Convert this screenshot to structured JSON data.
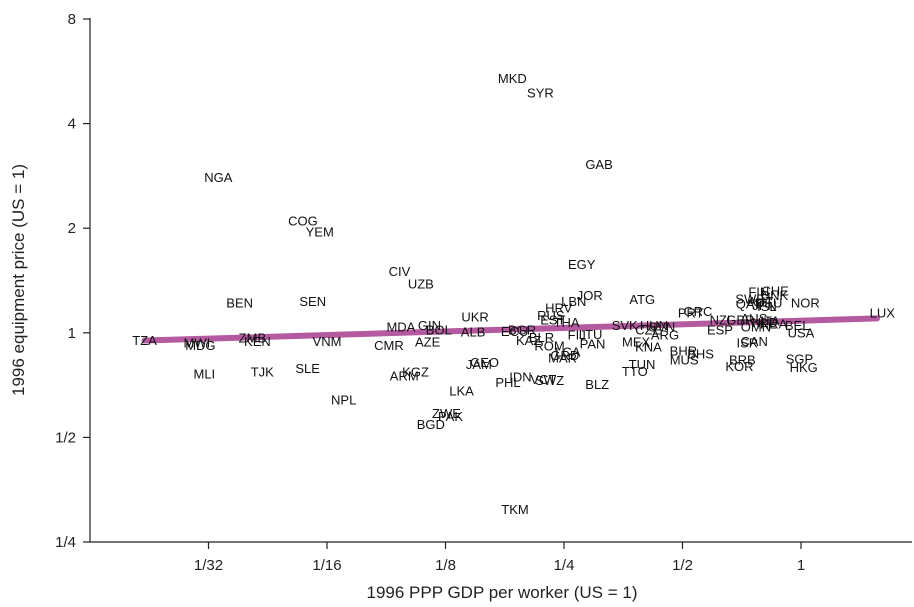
{
  "chart_data": {
    "type": "scatter",
    "title": "",
    "xlabel": "1996 PPP GDP per worker (US = 1)",
    "ylabel": "1996 equipment price (US = 1)",
    "x_scale": "log2",
    "y_scale": "log2",
    "xlim": [
      0.02,
      1.85
    ],
    "ylim": [
      0.25,
      8
    ],
    "x_ticks": [
      {
        "value": 0.03125,
        "label": "1/32"
      },
      {
        "value": 0.0625,
        "label": "1/16"
      },
      {
        "value": 0.125,
        "label": "1/8"
      },
      {
        "value": 0.25,
        "label": "1/4"
      },
      {
        "value": 0.5,
        "label": "1/2"
      },
      {
        "value": 1,
        "label": "1"
      }
    ],
    "y_ticks": [
      {
        "value": 0.25,
        "label": "1/4"
      },
      {
        "value": 0.5,
        "label": "1/2"
      },
      {
        "value": 1,
        "label": "1"
      },
      {
        "value": 2,
        "label": "2"
      },
      {
        "value": 4,
        "label": "4"
      },
      {
        "value": 8,
        "label": "8"
      }
    ],
    "fit_line": {
      "x": [
        0.0215,
        1.56
      ],
      "y": [
        0.95,
        1.1
      ],
      "color": "#b45aa0"
    },
    "points": [
      {
        "label": "TZA",
        "x": 0.0215,
        "y": 0.95
      },
      {
        "label": "MWI",
        "x": 0.0292,
        "y": 0.935
      },
      {
        "label": "MDG",
        "x": 0.0298,
        "y": 0.92
      },
      {
        "label": "ZMB",
        "x": 0.0404,
        "y": 0.965
      },
      {
        "label": "KEN",
        "x": 0.0416,
        "y": 0.945
      },
      {
        "label": "VNM",
        "x": 0.0625,
        "y": 0.945
      },
      {
        "label": "CMR",
        "x": 0.0898,
        "y": 0.92
      },
      {
        "label": "MDA",
        "x": 0.0963,
        "y": 1.04
      },
      {
        "label": "AZE",
        "x": 0.1126,
        "y": 0.94
      },
      {
        "label": "GIN",
        "x": 0.1138,
        "y": 1.05
      },
      {
        "label": "BOL",
        "x": 0.1202,
        "y": 1.02
      },
      {
        "label": "ALB",
        "x": 0.1469,
        "y": 1.005
      },
      {
        "label": "UKR",
        "x": 0.1486,
        "y": 1.11
      },
      {
        "label": "BEN",
        "x": 0.0375,
        "y": 1.22
      },
      {
        "label": "SEN",
        "x": 0.0575,
        "y": 1.23
      },
      {
        "label": "UZB",
        "x": 0.1082,
        "y": 1.38
      },
      {
        "label": "CIV",
        "x": 0.0955,
        "y": 1.5
      },
      {
        "label": "COG",
        "x": 0.0543,
        "y": 2.1
      },
      {
        "label": "YEM",
        "x": 0.0599,
        "y": 1.95
      },
      {
        "label": "NGA",
        "x": 0.0331,
        "y": 2.8
      },
      {
        "label": "MKD",
        "x": 0.1848,
        "y": 5.4
      },
      {
        "label": "SYR",
        "x": 0.2178,
        "y": 4.9
      },
      {
        "label": "GAB",
        "x": 0.3069,
        "y": 3.05
      },
      {
        "label": "EGY",
        "x": 0.2773,
        "y": 1.57
      },
      {
        "label": "JOR",
        "x": 0.2906,
        "y": 1.28
      },
      {
        "label": "LBN",
        "x": 0.2647,
        "y": 1.23
      },
      {
        "label": "HRV",
        "x": 0.2424,
        "y": 1.18
      },
      {
        "label": "RUS",
        "x": 0.2315,
        "y": 1.12
      },
      {
        "label": "EST",
        "x": 0.2342,
        "y": 1.09
      },
      {
        "label": "THA",
        "x": 0.2538,
        "y": 1.07
      },
      {
        "label": "ECU",
        "x": 0.1873,
        "y": 1.01
      },
      {
        "label": "BGR",
        "x": 0.1956,
        "y": 1.02
      },
      {
        "label": "BLR",
        "x": 0.2192,
        "y": 0.97
      },
      {
        "label": "KAZ",
        "x": 0.2033,
        "y": 0.95
      },
      {
        "label": "ROM",
        "x": 0.2297,
        "y": 0.915
      },
      {
        "label": "LCA",
        "x": 0.2556,
        "y": 0.88
      },
      {
        "label": "GRD",
        "x": 0.2512,
        "y": 0.86
      },
      {
        "label": "MAR",
        "x": 0.2479,
        "y": 0.845
      },
      {
        "label": "FIJ",
        "x": 0.2693,
        "y": 0.985
      },
      {
        "label": "LTU",
        "x": 0.2921,
        "y": 0.99
      },
      {
        "label": "PAN",
        "x": 0.2954,
        "y": 0.93
      },
      {
        "label": "MEX",
        "x": 0.3812,
        "y": 0.94
      },
      {
        "label": "KNA",
        "x": 0.4097,
        "y": 0.91
      },
      {
        "label": "ARG",
        "x": 0.4513,
        "y": 0.985
      },
      {
        "label": "ATG",
        "x": 0.3951,
        "y": 1.245
      },
      {
        "label": "HUN",
        "x": 0.4232,
        "y": 1.05
      },
      {
        "label": "SVN",
        "x": 0.4433,
        "y": 1.04
      },
      {
        "label": "SVK",
        "x": 0.3566,
        "y": 1.05
      },
      {
        "label": "CZE",
        "x": 0.4093,
        "y": 1.02
      },
      {
        "label": "GEO",
        "x": 0.1571,
        "y": 0.82
      },
      {
        "label": "JAM",
        "x": 0.1519,
        "y": 0.81
      },
      {
        "label": "KGZ",
        "x": 0.1049,
        "y": 0.77
      },
      {
        "label": "ARM",
        "x": 0.0982,
        "y": 0.75
      },
      {
        "label": "IDN",
        "x": 0.1938,
        "y": 0.745
      },
      {
        "label": "PHL",
        "x": 0.1802,
        "y": 0.72
      },
      {
        "label": "VCT",
        "x": 0.2216,
        "y": 0.735
      },
      {
        "label": "SWZ",
        "x": 0.2298,
        "y": 0.73
      },
      {
        "label": "BLZ",
        "x": 0.3036,
        "y": 0.71
      },
      {
        "label": "TTO",
        "x": 0.3783,
        "y": 0.775
      },
      {
        "label": "TUN",
        "x": 0.3945,
        "y": 0.81
      },
      {
        "label": "LKA",
        "x": 0.1373,
        "y": 0.68
      },
      {
        "label": "NPL",
        "x": 0.0689,
        "y": 0.64
      },
      {
        "label": "ZWE",
        "x": 0.1257,
        "y": 0.585
      },
      {
        "label": "PAK",
        "x": 0.1287,
        "y": 0.575
      },
      {
        "label": "BGD",
        "x": 0.1147,
        "y": 0.545
      },
      {
        "label": "TKM",
        "x": 0.1877,
        "y": 0.31
      },
      {
        "label": "MLI",
        "x": 0.0305,
        "y": 0.76
      },
      {
        "label": "TJK",
        "x": 0.0428,
        "y": 0.77
      },
      {
        "label": "SLE",
        "x": 0.0558,
        "y": 0.79
      },
      {
        "label": "BHR",
        "x": 0.5026,
        "y": 0.885
      },
      {
        "label": "BHS",
        "x": 0.5557,
        "y": 0.87
      },
      {
        "label": "MUS",
        "x": 0.5048,
        "y": 0.835
      },
      {
        "label": "BRB",
        "x": 0.7097,
        "y": 0.835
      },
      {
        "label": "KOR",
        "x": 0.6975,
        "y": 0.8
      },
      {
        "label": "SGP",
        "x": 0.9913,
        "y": 0.84
      },
      {
        "label": "HKG",
        "x": 1.0157,
        "y": 0.795
      },
      {
        "label": "ISR",
        "x": 0.7305,
        "y": 0.935
      },
      {
        "label": "CAN",
        "x": 0.7605,
        "y": 0.945
      },
      {
        "label": "USA",
        "x": 1.0,
        "y": 1.0
      },
      {
        "label": "ESP",
        "x": 0.6226,
        "y": 1.02
      },
      {
        "label": "OMN",
        "x": 0.7684,
        "y": 1.04
      },
      {
        "label": "NZL",
        "x": 0.6295,
        "y": 1.09
      },
      {
        "label": "GRC",
        "x": 0.5473,
        "y": 1.15
      },
      {
        "label": "PRT",
        "x": 0.5247,
        "y": 1.14
      },
      {
        "label": "GBR",
        "x": 0.7012,
        "y": 1.09
      },
      {
        "label": "AUS",
        "x": 0.7597,
        "y": 1.1
      },
      {
        "label": "ITA",
        "x": 0.8342,
        "y": 1.08
      },
      {
        "label": "IRL",
        "x": 0.8167,
        "y": 1.06
      },
      {
        "label": "NLD",
        "x": 0.8092,
        "y": 1.07
      },
      {
        "label": "BEL",
        "x": 0.9778,
        "y": 1.05
      },
      {
        "label": "FRA",
        "x": 0.8553,
        "y": 1.06
      },
      {
        "label": "NOR",
        "x": 1.0254,
        "y": 1.22
      },
      {
        "label": "SWE",
        "x": 0.7427,
        "y": 1.25
      },
      {
        "label": "AUT",
        "x": 0.7891,
        "y": 1.23
      },
      {
        "label": "JPN",
        "x": 0.8077,
        "y": 1.2
      },
      {
        "label": "ISL",
        "x": 0.8191,
        "y": 1.19
      },
      {
        "label": "DEU",
        "x": 0.8279,
        "y": 1.22
      },
      {
        "label": "QAT",
        "x": 0.7364,
        "y": 1.21
      },
      {
        "label": "FIN",
        "x": 0.7814,
        "y": 1.31
      },
      {
        "label": "CHE",
        "x": 0.8593,
        "y": 1.32
      },
      {
        "label": "DNK",
        "x": 0.8562,
        "y": 1.28
      },
      {
        "label": "LUX",
        "x": 1.6086,
        "y": 1.14
      }
    ]
  }
}
